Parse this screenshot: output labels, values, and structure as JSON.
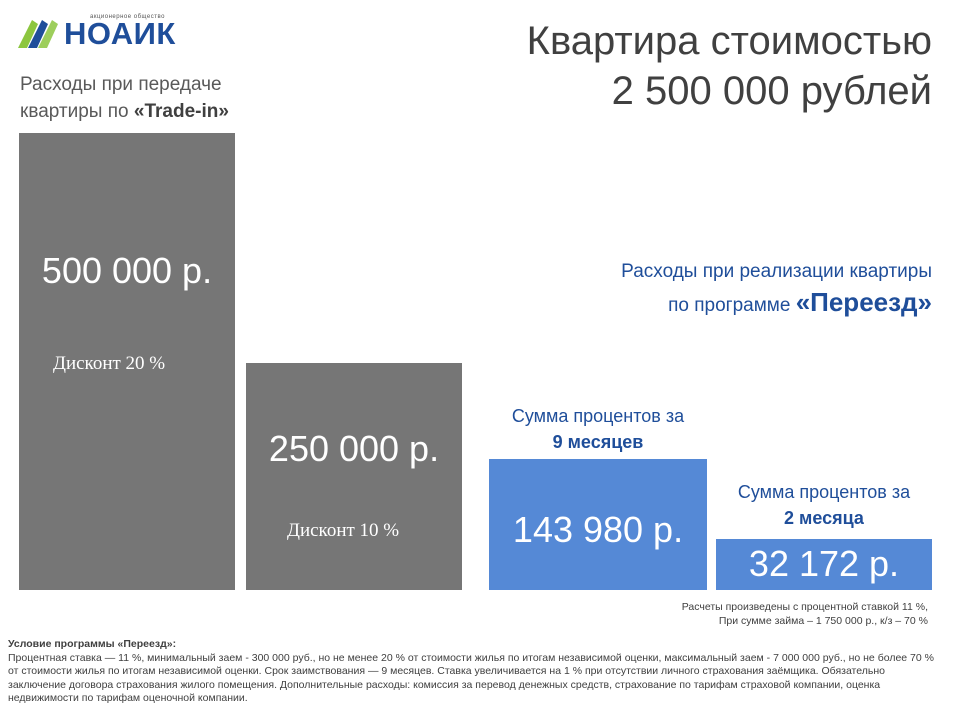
{
  "logo": {
    "text": "НОАИК",
    "sub": "акционерное общество"
  },
  "title_line1": "Квартира стоимостью",
  "title_line2": "2 500 000 рублей",
  "left_heading": {
    "line1": "Расходы при передаче",
    "line2_prefix": "квартиры по ",
    "line2_bold": "«Trade-in»"
  },
  "right_heading": {
    "line1": "Расходы при реализации квартиры",
    "line2_prefix": "по программе ",
    "line2_bold": "«Переезд»"
  },
  "blocks": [
    {
      "amount": "500 000 р.",
      "discount": "Дисконт 20 %"
    },
    {
      "amount": "250 000 р.",
      "discount": "Дисконт 10 %"
    },
    {
      "caption_line1": "Сумма процентов за",
      "caption_line2": "9 месяцев",
      "amount": "143 980 р."
    },
    {
      "caption_line1": "Сумма процентов за",
      "caption_line2": "2 месяца",
      "amount": "32 172 р."
    }
  ],
  "calc_note": {
    "line1": "Расчеты произведены   с процентной ставкой 11  %,",
    "line2": "При сумме займа – 1 750 000  р., к/з – 70  %"
  },
  "footnote": {
    "title": "Условие программы  «Переезд»:",
    "body": "Процентная ставка — 11  %, минимальный заем - 300 000  руб., но не менее 20 % от стоимости жилья по итогам независимой оценки, максимальный заем - 7 000 000 руб., но не более 70 % от стоимости жилья по итогам независимой оценки. Срок заимствования — 9 месяцев. Ставка увеличивается на 1  % при отсутствии личного страхования заёмщика. Обязательно заключение договора страхования жилого помещения. Дополнительные расходы: комиссия за перевод денежных средств, страхование по тарифам страховой компании, оценка недвижимости по тарифам оценочной компании."
  },
  "colors": {
    "gray_block": "#767676",
    "blue_block": "#5589d6",
    "brand_blue": "#1f4e9a"
  }
}
